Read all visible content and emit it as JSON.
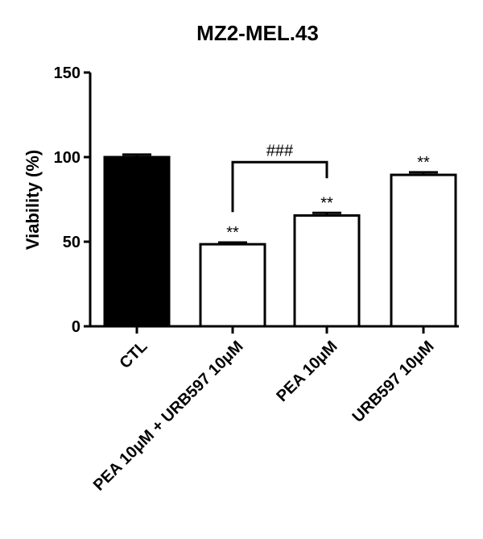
{
  "chart_data": {
    "type": "bar",
    "title": "MZ2-MEL.43",
    "xlabel": "",
    "ylabel": "Viability (%)",
    "ylim": [
      0,
      150
    ],
    "yticks": [
      0,
      50,
      100,
      150
    ],
    "categories": [
      "CTL",
      "PEA 10μM + URB597 10μM",
      "PEA 10μM",
      "URB597 10μM"
    ],
    "values": [
      100,
      48.5,
      65.5,
      89.5
    ],
    "errors": [
      1.5,
      1,
      1.5,
      1.5
    ],
    "fills": [
      "#000000",
      "#ffffff",
      "#ffffff",
      "#ffffff"
    ],
    "significance": [
      "",
      "**",
      "**",
      "**"
    ],
    "comparison": {
      "from": 1,
      "to": 2,
      "label": "###",
      "level": 97
    },
    "grid": false,
    "legend": "none"
  }
}
